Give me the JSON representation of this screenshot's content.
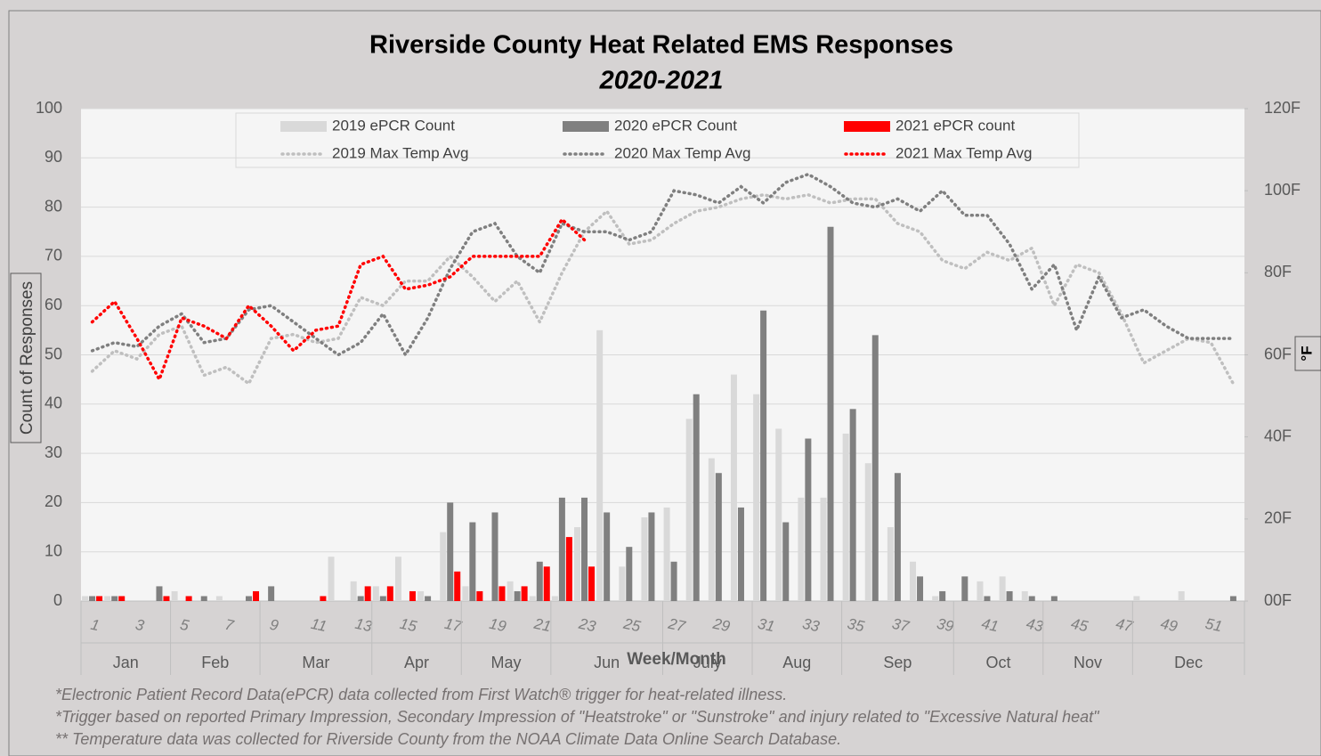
{
  "chart_data": {
    "type": "bar",
    "title": "Riverside County Heat Related EMS Responses",
    "subtitle": "2020-2021",
    "ylabel": "Count of Responses",
    "y2label": "°F",
    "xlabel": "Week/Month",
    "categories": [
      1,
      null,
      3,
      null,
      5,
      null,
      7,
      null,
      9,
      null,
      11,
      null,
      13,
      null,
      15,
      null,
      17,
      null,
      19,
      null,
      21,
      null,
      23,
      null,
      25,
      null,
      27,
      null,
      29,
      null,
      31,
      null,
      33,
      null,
      35,
      null,
      37,
      null,
      39,
      null,
      41,
      null,
      43,
      null,
      45,
      null,
      47,
      null,
      49,
      null,
      51,
      null
    ],
    "month_groups": [
      {
        "label": "Jan",
        "weeks": 4
      },
      {
        "label": "Feb",
        "weeks": 4
      },
      {
        "label": "Mar",
        "weeks": 5
      },
      {
        "label": "Apr",
        "weeks": 4
      },
      {
        "label": "May",
        "weeks": 4
      },
      {
        "label": "Jun",
        "weeks": 5
      },
      {
        "label": "July",
        "weeks": 4
      },
      {
        "label": "Aug",
        "weeks": 4
      },
      {
        "label": "Sep",
        "weeks": 5
      },
      {
        "label": "Oct",
        "weeks": 4
      },
      {
        "label": "Nov",
        "weeks": 4
      },
      {
        "label": "Dec",
        "weeks": 5
      }
    ],
    "ylim": [
      0,
      100
    ],
    "yticks": [
      0,
      10,
      20,
      30,
      40,
      50,
      60,
      70,
      80,
      90,
      100
    ],
    "y2lim": [
      0,
      120
    ],
    "y2ticks": [
      {
        "value": 0,
        "label": "00F"
      },
      {
        "value": 20,
        "label": "20F"
      },
      {
        "value": 40,
        "label": "40F"
      },
      {
        "value": 60,
        "label": "60F"
      },
      {
        "value": 80,
        "label": "80F"
      },
      {
        "value": 100,
        "label": "100F"
      },
      {
        "value": 120,
        "label": "120F"
      }
    ],
    "grid": true,
    "legend": "top",
    "series": [
      {
        "name": "2019 ePCR Count",
        "type": "bar",
        "color": "#d9d9d9",
        "values": [
          1,
          1,
          0,
          0,
          2,
          0,
          1,
          0,
          0,
          0,
          0,
          9,
          4,
          3,
          9,
          2,
          14,
          3,
          0,
          4,
          1,
          1,
          15,
          55,
          7,
          17,
          19,
          37,
          29,
          46,
          42,
          35,
          21,
          21,
          34,
          28,
          15,
          8,
          1,
          0,
          4,
          5,
          2,
          0,
          0,
          0,
          0,
          1,
          0,
          2,
          0,
          0
        ]
      },
      {
        "name": "2020 ePCR Count",
        "type": "bar",
        "color": "#808080",
        "values": [
          1,
          1,
          0,
          3,
          0,
          1,
          0,
          1,
          3,
          0,
          0,
          0,
          1,
          1,
          0,
          1,
          20,
          16,
          18,
          2,
          8,
          21,
          21,
          18,
          11,
          18,
          8,
          42,
          26,
          19,
          59,
          16,
          33,
          76,
          39,
          54,
          26,
          5,
          2,
          5,
          1,
          2,
          1,
          1,
          0,
          0,
          0,
          0,
          0,
          0,
          0,
          1
        ]
      },
      {
        "name": "2021 ePCR count",
        "type": "bar",
        "color": "#ff0000",
        "values": [
          1,
          1,
          0,
          1,
          1,
          0,
          0,
          2,
          0,
          0,
          1,
          0,
          3,
          3,
          2,
          0,
          6,
          2,
          3,
          3,
          7,
          13,
          7,
          null,
          null,
          null,
          null,
          null,
          null,
          null,
          null,
          null,
          null,
          null,
          null,
          null,
          null,
          null,
          null,
          null,
          null,
          null,
          null,
          null,
          null,
          null,
          null,
          null,
          null,
          null,
          null,
          null
        ]
      },
      {
        "name": "2019 Max Temp Avg",
        "type": "line",
        "axis": "y2",
        "color": "#bfbfbf",
        "values": [
          56,
          61,
          59,
          65,
          67,
          55,
          57,
          53,
          64,
          65,
          63,
          64,
          74,
          72,
          78,
          78,
          84,
          79,
          73,
          78,
          68,
          80,
          90,
          95,
          87,
          88,
          92,
          95,
          96,
          98,
          99,
          98,
          99,
          97,
          98,
          98,
          92,
          90,
          83,
          81,
          85,
          83,
          86,
          72,
          82,
          80,
          70,
          58,
          61,
          64,
          63,
          53
        ]
      },
      {
        "name": "2020 Max Temp Avg",
        "type": "line",
        "axis": "y2",
        "color": "#7f7f7f",
        "values": [
          61,
          63,
          62,
          67,
          70,
          63,
          64,
          71,
          72,
          68,
          64,
          60,
          63,
          70,
          60,
          69,
          81,
          90,
          92,
          84,
          80,
          92,
          90,
          90,
          88,
          90,
          100,
          99,
          97,
          101,
          97,
          102,
          104,
          101,
          97,
          96,
          98,
          95,
          100,
          94,
          94,
          87,
          76,
          82,
          66,
          79,
          69,
          71,
          67,
          64,
          64,
          64
        ]
      },
      {
        "name": "2021 Max Temp Avg",
        "type": "line",
        "axis": "y2",
        "color": "#ff0000",
        "values": [
          68,
          73,
          64,
          54,
          69,
          67,
          64,
          72,
          67,
          61,
          66,
          67,
          82,
          84,
          76,
          77,
          79,
          84,
          84,
          84,
          84,
          93,
          88,
          null,
          null,
          null,
          null,
          null,
          null,
          null,
          null,
          null,
          null,
          null,
          null,
          null,
          null,
          null,
          null,
          null,
          null,
          null,
          null,
          null,
          null,
          null,
          null,
          null,
          null,
          null,
          null,
          null
        ]
      }
    ],
    "notes": [
      "*Electronic Patient Record Data(ePCR) data collected from First Watch® trigger  for heat-related illness.",
      "*Trigger based on reported Primary Impression, Secondary Impression  of \"Heatstroke\" or \"Sunstroke\"  and  injury related to \"Excessive Natural heat\"",
      "** Temperature data was collected for Riverside County from the NOAA Climate Data Online Search Database."
    ]
  }
}
